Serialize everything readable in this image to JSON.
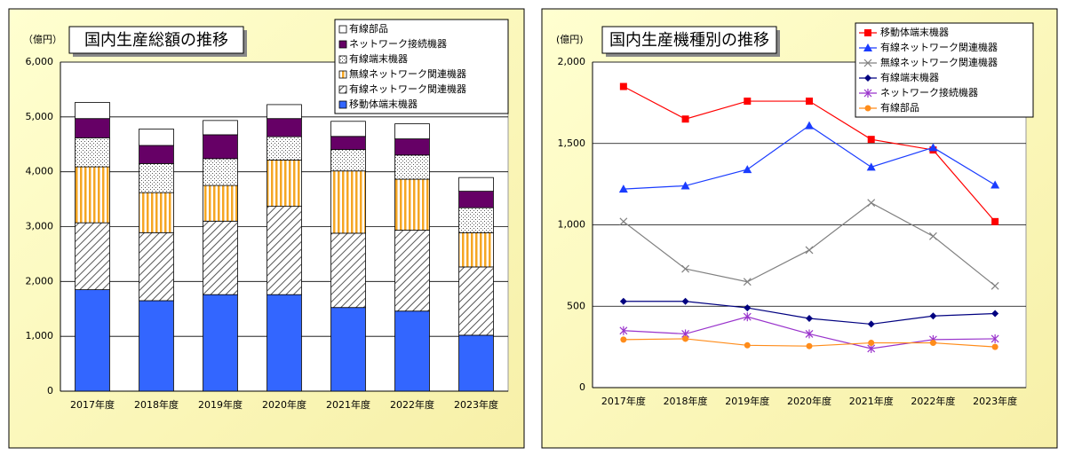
{
  "chart_data": [
    {
      "type": "stacked-bar",
      "title": "国内生産総額の推移",
      "y_unit": "（億円）",
      "categories": [
        "2017年度",
        "2018年度",
        "2019年度",
        "2020年度",
        "2021年度",
        "2022年度",
        "2023年度"
      ],
      "ylim": [
        0,
        6000
      ],
      "yticks": [
        0,
        {
          "value": 1000,
          "label": "1,000"
        },
        {
          "value": 2000,
          "label": "2,000"
        },
        {
          "value": 3000,
          "label": "3,000"
        },
        {
          "value": 4000,
          "label": "4,000"
        },
        {
          "value": 5000,
          "label": "5,000"
        },
        {
          "value": 6000,
          "label": "6,000"
        }
      ],
      "grid": true,
      "legend": "top-right",
      "series": [
        {
          "name": "移動体端末機器",
          "color": "#3366ff",
          "pattern": "solid",
          "values": [
            1850,
            1650,
            1760,
            1760,
            1525,
            1460,
            1020
          ]
        },
        {
          "name": "有線ネットワーク関連機器",
          "color": "#555555",
          "pattern": "hatch",
          "values": [
            1220,
            1240,
            1340,
            1610,
            1355,
            1475,
            1245
          ]
        },
        {
          "name": "無線ネットワーク関連機器",
          "color": "#f5a623",
          "pattern": "stripes",
          "values": [
            1020,
            730,
            650,
            845,
            1135,
            930,
            625
          ]
        },
        {
          "name": "有線端末機器",
          "color": "#555555",
          "pattern": "dots",
          "values": [
            530,
            530,
            490,
            425,
            390,
            440,
            455
          ]
        },
        {
          "name": "ネットワーク接続機器",
          "color": "#660066",
          "pattern": "solid",
          "values": [
            350,
            330,
            435,
            330,
            240,
            295,
            300
          ]
        },
        {
          "name": "有線部品",
          "color": "#ffffff",
          "pattern": "solid",
          "values": [
            295,
            300,
            260,
            255,
            275,
            275,
            250
          ]
        }
      ]
    },
    {
      "type": "line",
      "title": "国内生産機種別の推移",
      "y_unit": "(億円)",
      "categories": [
        "2017年度",
        "2018年度",
        "2019年度",
        "2020年度",
        "2021年度",
        "2022年度",
        "2023年度"
      ],
      "ylim": [
        0,
        2000
      ],
      "yticks": [
        0,
        500,
        {
          "value": 1000,
          "label": "1,000"
        },
        {
          "value": 1500,
          "label": "1,500"
        },
        {
          "value": 2000,
          "label": "2,000"
        }
      ],
      "grid": true,
      "legend": "top-right",
      "series": [
        {
          "name": "移動体端末機器",
          "color": "#ff0000",
          "marker": "square",
          "values": [
            1850,
            1650,
            1760,
            1760,
            1525,
            1460,
            1020
          ]
        },
        {
          "name": "有線ネットワーク関連機器",
          "color": "#1a3cff",
          "marker": "triangle",
          "values": [
            1220,
            1240,
            1340,
            1610,
            1355,
            1475,
            1245
          ]
        },
        {
          "name": "無線ネットワーク関連機器",
          "color": "#808080",
          "marker": "x",
          "values": [
            1020,
            730,
            650,
            845,
            1135,
            930,
            625
          ]
        },
        {
          "name": "有線端末機器",
          "color": "#000080",
          "marker": "diamond",
          "values": [
            530,
            530,
            490,
            425,
            390,
            440,
            455
          ]
        },
        {
          "name": "ネットワーク接続機器",
          "color": "#9933cc",
          "marker": "star",
          "values": [
            350,
            330,
            435,
            330,
            240,
            295,
            300
          ]
        },
        {
          "name": "有線部品",
          "color": "#ff8c1a",
          "marker": "circle",
          "values": [
            295,
            300,
            260,
            255,
            275,
            275,
            250
          ]
        }
      ]
    }
  ]
}
